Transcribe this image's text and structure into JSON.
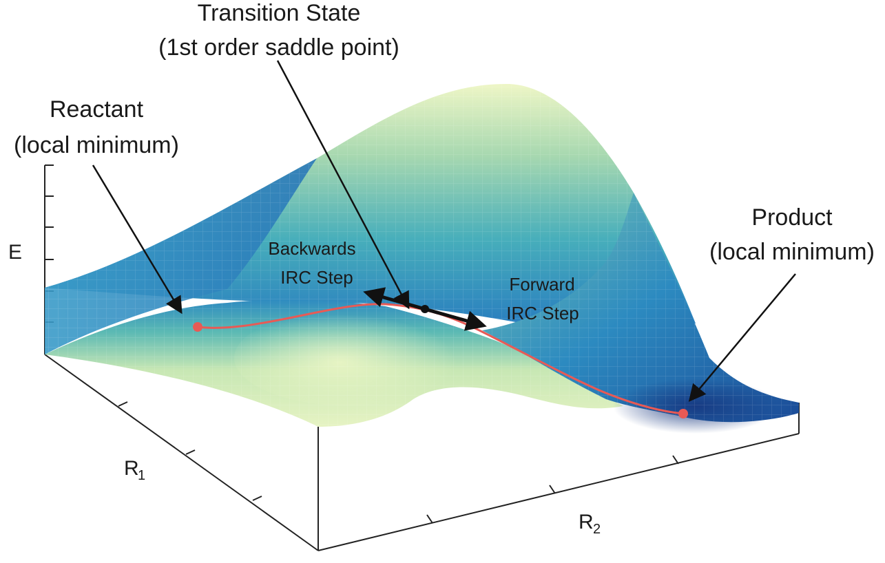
{
  "title_line1": "Transition State",
  "title_line2": "(1st order saddle point)",
  "reactant": {
    "line1": "Reactant",
    "line2": "(local minimum)"
  },
  "product": {
    "line1": "Product",
    "line2": "(local minimum)"
  },
  "backward": {
    "line1": "Backwards",
    "line2": "IRC Step"
  },
  "forward": {
    "line1": "Forward",
    "line2": "IRC Step"
  },
  "axes": {
    "energy": "E",
    "r1_main": "R",
    "r1_sub": "1",
    "r2_main": "R",
    "r2_sub": "2"
  },
  "colors": {
    "deep_blue": "#1f4e9a",
    "mid_blue": "#2e8fc0",
    "teal": "#4db3b8",
    "light_green": "#d9eeb0",
    "pale_yellow": "#f4f8c8",
    "path_red": "#e85a55",
    "arrow": "#111111"
  },
  "icons": [
    "reactant-marker-icon",
    "product-marker-icon",
    "saddle-point-icon"
  ]
}
